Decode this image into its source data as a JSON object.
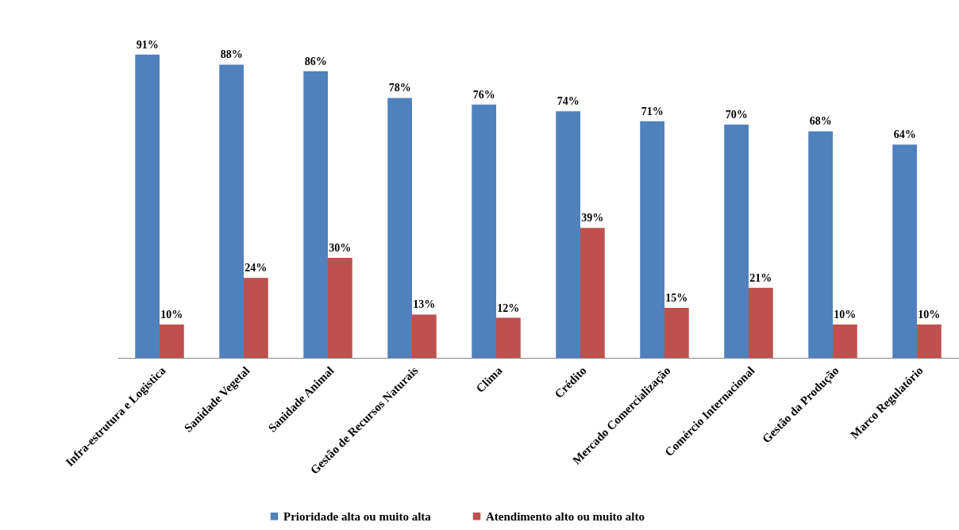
{
  "chart_data": {
    "type": "bar",
    "categories": [
      "Infra-estrutura e Logistica",
      "Sanidade Vegetal",
      "Sanidade Animal",
      "Gestão de Recursos Naturais",
      "Clima",
      "Crédito",
      "Mercado Comercialização",
      "Comércio Internacional",
      "Gestão da Produção",
      "Marco Regulatório"
    ],
    "series": [
      {
        "name": "Prioridade alta ou muito alta",
        "color": "#4f81bd",
        "values": [
          91,
          88,
          86,
          78,
          76,
          74,
          71,
          70,
          68,
          64
        ],
        "value_labels": [
          "91%",
          "88%",
          "86%",
          "78%",
          "76%",
          "74%",
          "71%",
          "70%",
          "68%",
          "64%"
        ]
      },
      {
        "name": "Atendimento alto ou muito alto",
        "color": "#c0504d",
        "values": [
          10,
          24,
          30,
          13,
          12,
          39,
          15,
          21,
          10,
          10
        ],
        "value_labels": [
          "10%",
          "24%",
          "30%",
          "13%",
          "12%",
          "39%",
          "15%",
          "21%",
          "10%",
          "10%"
        ]
      }
    ],
    "legend": "bottom"
  }
}
